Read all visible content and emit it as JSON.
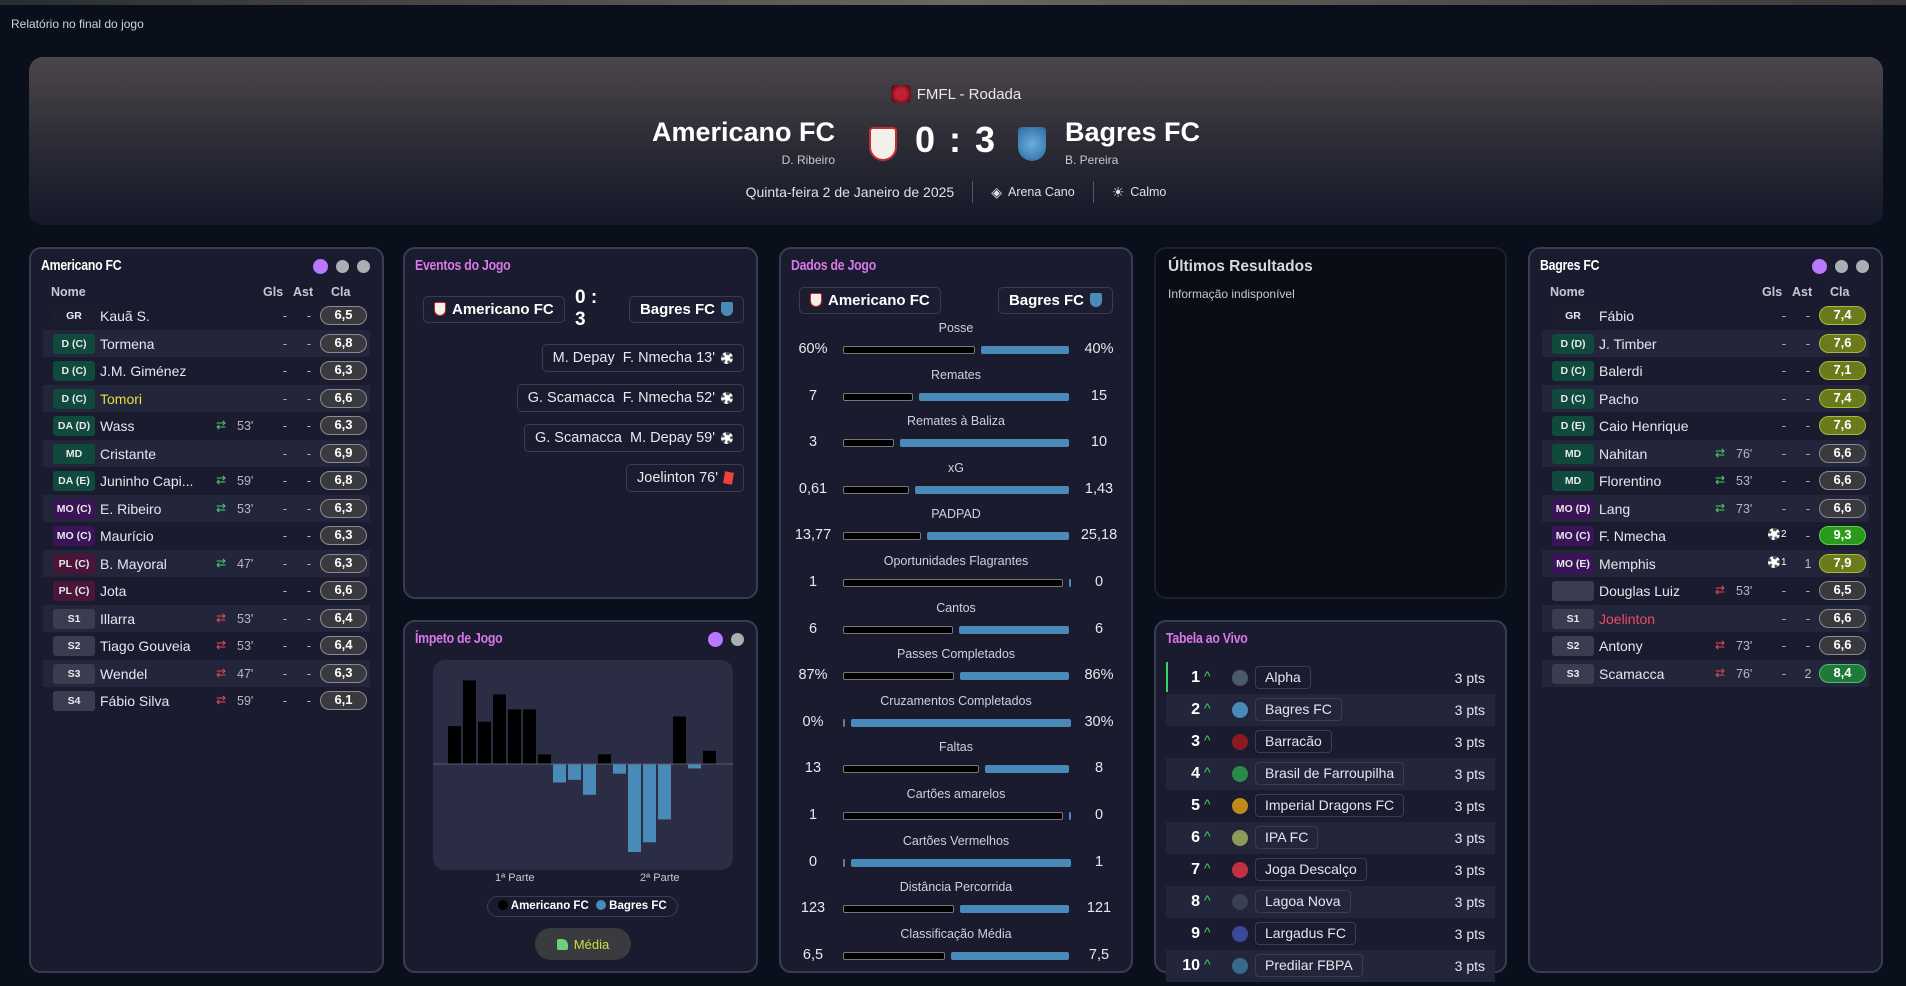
{
  "page_title": "Relatório no final do jogo",
  "colors": {
    "accent": "#b978ff",
    "home": "#000000",
    "away": "#4a8ab8",
    "title_pink": "#d977e8"
  },
  "match": {
    "competition": "FMFL - Rodada",
    "home": {
      "name": "Americano FC",
      "manager": "D. Ribeiro"
    },
    "away": {
      "name": "Bagres FC",
      "manager": "B. Pereira"
    },
    "score": "0 : 3",
    "date": "Quinta-feira 2 de Janeiro de 2025",
    "stadium": "Arena Cano",
    "stadium_icon": "stadium-icon",
    "weather": "Calmo",
    "weather_icon": "sun-icon"
  },
  "columns": {
    "name": "Nome",
    "goals": "Gls",
    "assists": "Ast",
    "rating": "Cla"
  },
  "home_lineup": {
    "title": "Americano FC",
    "players": [
      {
        "pos": "GR",
        "name": "Kauã S.",
        "sub": "",
        "min": "",
        "gls": "-",
        "ast": "-",
        "cla": "6,5"
      },
      {
        "pos": "D (C)",
        "name": "Tormena",
        "sub": "",
        "min": "",
        "gls": "-",
        "ast": "-",
        "cla": "6,8"
      },
      {
        "pos": "D (C)",
        "name": "J.M. Giménez",
        "sub": "",
        "min": "",
        "gls": "-",
        "ast": "-",
        "cla": "6,3"
      },
      {
        "pos": "D (C)",
        "name": "Tomori",
        "highlight": "yellow",
        "sub": "",
        "min": "",
        "gls": "-",
        "ast": "-",
        "cla": "6,6"
      },
      {
        "pos": "DA (D)",
        "name": "Wass",
        "sub": "off",
        "min": "53'",
        "gls": "-",
        "ast": "-",
        "cla": "6,3"
      },
      {
        "pos": "MD",
        "name": "Cristante",
        "sub": "",
        "min": "",
        "gls": "-",
        "ast": "-",
        "cla": "6,9"
      },
      {
        "pos": "DA (E)",
        "name": "Juninho Capi...",
        "sub": "off",
        "min": "59'",
        "gls": "-",
        "ast": "-",
        "cla": "6,8"
      },
      {
        "pos": "MO (C)",
        "name": "E. Ribeiro",
        "sub": "off",
        "min": "53'",
        "gls": "-",
        "ast": "-",
        "cla": "6,3"
      },
      {
        "pos": "MO (C)",
        "name": "Maurício",
        "sub": "",
        "min": "",
        "gls": "-",
        "ast": "-",
        "cla": "6,3"
      },
      {
        "pos": "PL (C)",
        "name": "B. Mayoral",
        "sub": "off",
        "min": "47'",
        "gls": "-",
        "ast": "-",
        "cla": "6,3"
      },
      {
        "pos": "PL (C)",
        "name": "Jota",
        "sub": "",
        "min": "",
        "gls": "-",
        "ast": "-",
        "cla": "6,6"
      },
      {
        "pos": "S1",
        "name": "Illarra",
        "sub": "on",
        "min": "53'",
        "gls": "-",
        "ast": "-",
        "cla": "6,4"
      },
      {
        "pos": "S2",
        "name": "Tiago Gouveia",
        "sub": "on",
        "min": "53'",
        "gls": "-",
        "ast": "-",
        "cla": "6,4"
      },
      {
        "pos": "S3",
        "name": "Wendel",
        "sub": "on",
        "min": "47'",
        "gls": "-",
        "ast": "-",
        "cla": "6,3"
      },
      {
        "pos": "S4",
        "name": "Fábio Silva",
        "sub": "on",
        "min": "59'",
        "gls": "-",
        "ast": "-",
        "cla": "6,1"
      }
    ]
  },
  "away_lineup": {
    "title": "Bagres FC",
    "players": [
      {
        "pos": "GR",
        "name": "Fábio",
        "sub": "",
        "min": "",
        "gls": "-",
        "ast": "-",
        "cla": "7,4",
        "tier": "good"
      },
      {
        "pos": "D (D)",
        "name": "J. Timber",
        "sub": "",
        "min": "",
        "gls": "-",
        "ast": "-",
        "cla": "7,6",
        "tier": "good"
      },
      {
        "pos": "D (C)",
        "name": "Balerdi",
        "sub": "",
        "min": "",
        "gls": "-",
        "ast": "-",
        "cla": "7,1",
        "tier": "good"
      },
      {
        "pos": "D (C)",
        "name": "Pacho",
        "sub": "",
        "min": "",
        "gls": "-",
        "ast": "-",
        "cla": "7,4",
        "tier": "good"
      },
      {
        "pos": "D (E)",
        "name": "Caio Henrique",
        "sub": "",
        "min": "",
        "gls": "-",
        "ast": "-",
        "cla": "7,6",
        "tier": "good"
      },
      {
        "pos": "MD",
        "name": "Nahitan",
        "sub": "off",
        "min": "76'",
        "gls": "-",
        "ast": "-",
        "cla": "6,6"
      },
      {
        "pos": "MD",
        "name": "Florentino",
        "sub": "off",
        "min": "53'",
        "gls": "-",
        "ast": "-",
        "cla": "6,6"
      },
      {
        "pos": "MO (D)",
        "name": "Lang",
        "sub": "off",
        "min": "73'",
        "gls": "-",
        "ast": "-",
        "cla": "6,6"
      },
      {
        "pos": "MO (C)",
        "name": "F. Nmecha",
        "sub": "",
        "min": "",
        "gls": "2",
        "gls_icon": "ball-icon",
        "ast": "-",
        "cla": "9,3",
        "tier": "great"
      },
      {
        "pos": "MO (E)",
        "name": "Memphis",
        "sub": "",
        "min": "",
        "gls": "1",
        "gls_icon": "ball-icon",
        "ast": "1",
        "cla": "7,9",
        "tier": "good"
      },
      {
        "pos": "",
        "name": "Douglas Luiz",
        "sub": "on",
        "min": "53'",
        "gls": "-",
        "ast": "-",
        "cla": "6,5"
      },
      {
        "pos": "S1",
        "name": "Joelinton",
        "highlight": "red",
        "sub": "",
        "min": "",
        "gls": "-",
        "ast": "-",
        "cla": "6,6"
      },
      {
        "pos": "S2",
        "name": "Antony",
        "sub": "on",
        "min": "73'",
        "gls": "-",
        "ast": "-",
        "cla": "6,6"
      },
      {
        "pos": "S3",
        "name": "Scamacca",
        "sub": "on",
        "min": "76'",
        "gls": "-",
        "ast": "2",
        "cla": "8,4",
        "tier": "very-good"
      }
    ]
  },
  "events": {
    "title": "Eventos do Jogo",
    "home": "Americano FC",
    "away": "Bagres FC",
    "score": "0 : 3",
    "items": [
      {
        "text": "M. Depay  F. Nmecha 13'",
        "icon": "ball-icon"
      },
      {
        "text": "G. Scamacca  F. Nmecha 52'",
        "icon": "ball-icon"
      },
      {
        "text": "G. Scamacca  M. Depay 59'",
        "icon": "ball-icon"
      },
      {
        "text": "Joelinton 76'",
        "icon": "red-card-icon"
      }
    ]
  },
  "stats": {
    "title": "Dados de Jogo",
    "home": "Americano FC",
    "away": "Bagres FC",
    "items": [
      {
        "label": "Posse",
        "home": "60%",
        "away": "40%"
      },
      {
        "label": "Remates",
        "home": "7",
        "away": "15"
      },
      {
        "label": "Remates à Baliza",
        "home": "3",
        "away": "10"
      },
      {
        "label": "xG",
        "home": "0,61",
        "away": "1,43"
      },
      {
        "label": "PADPAD",
        "home": "13,77",
        "away": "25,18"
      },
      {
        "label": "Oportunidades Flagrantes",
        "home": "1",
        "away": "0"
      },
      {
        "label": "Cantos",
        "home": "6",
        "away": "6"
      },
      {
        "label": "Passes Completados",
        "home": "87%",
        "away": "86%"
      },
      {
        "label": "Cruzamentos Completados",
        "home": "0%",
        "away": "30%"
      },
      {
        "label": "Faltas",
        "home": "13",
        "away": "8"
      },
      {
        "label": "Cartões amarelos",
        "home": "1",
        "away": "0"
      },
      {
        "label": "Cartões Vermelhos",
        "home": "0",
        "away": "1"
      },
      {
        "label": "Distância Percorrida",
        "home": "123",
        "away": "121"
      },
      {
        "label": "Classificação Média",
        "home": "6,5",
        "away": "7,5"
      }
    ]
  },
  "recent": {
    "title": "Últimos Resultados",
    "message": "Informação indisponível"
  },
  "momentum": {
    "title": "Ímpeto de Jogo",
    "half1": "1ª Parte",
    "half2": "2ª Parte",
    "legend_home": "Americano FC",
    "legend_away": "Bagres FC",
    "rating_label": "Média",
    "rating_icon": "thumbs-up-icon",
    "chart_data": {
      "type": "bar",
      "values": [
        43,
        95,
        48,
        79,
        62,
        62,
        11,
        -21,
        -18,
        -35,
        11,
        -11,
        -100,
        -89,
        -63,
        54,
        -5,
        15
      ],
      "ylim": [
        -100,
        100
      ]
    }
  },
  "table": {
    "title": "Tabela ao Vivo",
    "rows": [
      {
        "pos": "1",
        "team": "Alpha",
        "pts": "3 pts",
        "logo": "#4a5a6a"
      },
      {
        "pos": "2",
        "team": "Bagres FC",
        "pts": "3 pts",
        "logo": "#4a8ab8"
      },
      {
        "pos": "3",
        "team": "Barracão",
        "pts": "3 pts",
        "logo": "#8a1a20"
      },
      {
        "pos": "4",
        "team": "Brasil de Farroupilha",
        "pts": "3 pts",
        "logo": "#2a8a4a"
      },
      {
        "pos": "5",
        "team": "Imperial Dragons FC",
        "pts": "3 pts",
        "logo": "#c08a1a"
      },
      {
        "pos": "6",
        "team": "IPA FC",
        "pts": "3 pts",
        "logo": "#8a9a5a"
      },
      {
        "pos": "7",
        "team": "Joga Descalço",
        "pts": "3 pts",
        "logo": "#c03040"
      },
      {
        "pos": "8",
        "team": "Lagoa Nova",
        "pts": "3 pts",
        "logo": "#3a4050"
      },
      {
        "pos": "9",
        "team": "Largadus FC",
        "pts": "3 pts",
        "logo": "#3a4a9a"
      },
      {
        "pos": "10",
        "team": "Predilar FBPA",
        "pts": "3 pts",
        "logo": "#3a6a8a"
      }
    ]
  }
}
